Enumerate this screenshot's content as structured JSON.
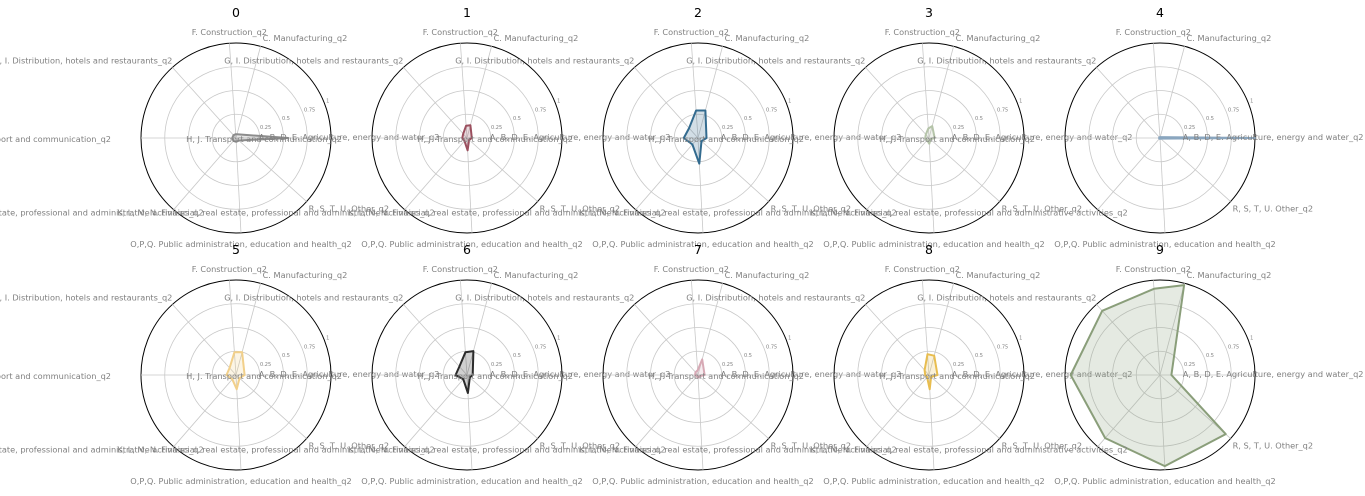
{
  "colors": {
    "grid": "#c8c8c8",
    "frame": "#000000",
    "label_text": "#808080",
    "title_text": "#000000"
  },
  "chart_data": {
    "type": "radar",
    "grid": true,
    "axes": [
      "A, B, D, E. Agriculture, energy and water_q2",
      "C. Manufacturing_q2",
      "F. Construction_q2",
      "G, I. Distribution, hotels and restaurants_q2",
      "H, J. Transport and communication_q2",
      "K, L, M, N. Financial, real estate, professional and administrative activities_q2",
      "O,P,Q. Public administration, education and health_q2",
      "R, S, T, U. Other_q2"
    ],
    "radial_ticks": [
      "0.25",
      "0.5",
      "0.75",
      "1"
    ],
    "rlim": [
      0,
      1
    ],
    "clusters": [
      {
        "title": "0",
        "color": "#8c8c8c",
        "values": [
          0.55,
          0.04,
          0.04,
          0.04,
          0.04,
          0.04,
          0.04,
          0.04
        ]
      },
      {
        "title": "1",
        "color": "#9b4f5e",
        "values": [
          0.05,
          0.14,
          0.13,
          0.06,
          0.05,
          0.04,
          0.13,
          0.03
        ]
      },
      {
        "title": "2",
        "color": "#336b8f",
        "values": [
          0.09,
          0.3,
          0.29,
          0.14,
          0.15,
          0.09,
          0.27,
          0.05
        ]
      },
      {
        "title": "3",
        "color": "#b5c4a9",
        "values": [
          0.06,
          0.13,
          0.1,
          0.05,
          0.04,
          0.03,
          0.06,
          0.02
        ]
      },
      {
        "title": "4",
        "color": "#8aa6bf",
        "values": [
          1.0,
          0.01,
          0.01,
          0.01,
          0.01,
          0.01,
          0.01,
          0.01
        ]
      },
      {
        "title": "5",
        "color": "#f2d08a",
        "values": [
          0.09,
          0.25,
          0.24,
          0.1,
          0.1,
          0.06,
          0.15,
          0.05
        ]
      },
      {
        "title": "6",
        "color": "#2b2b2b",
        "values": [
          0.06,
          0.26,
          0.24,
          0.12,
          0.12,
          0.06,
          0.19,
          0.04
        ]
      },
      {
        "title": "7",
        "color": "#d7a9b5",
        "values": [
          0.07,
          0.17,
          0.05,
          0.04,
          0.03,
          0.02,
          0.03,
          0.02
        ]
      },
      {
        "title": "8",
        "color": "#e8bd4f",
        "values": [
          0.09,
          0.21,
          0.22,
          0.07,
          0.04,
          0.03,
          0.15,
          0.03
        ]
      },
      {
        "title": "9",
        "color": "#8a9e7a",
        "values": [
          0.12,
          0.98,
          0.91,
          0.91,
          0.94,
          0.88,
          0.96,
          0.93
        ]
      }
    ]
  }
}
